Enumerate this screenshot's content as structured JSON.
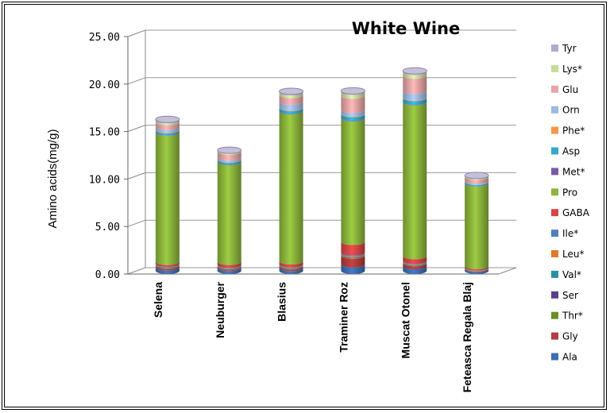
{
  "chart_data": {
    "type": "bar",
    "stacked": true,
    "three_d": true,
    "title": "White Wine",
    "ylabel": "Amino acids(mg/g)",
    "xlabel": "",
    "ylim": [
      0,
      25
    ],
    "yticks": [
      "0.00",
      "5.00",
      "10.00",
      "15.00",
      "20.00",
      "25.00"
    ],
    "grid": true,
    "legend_position": "right",
    "categories": [
      "Selena",
      "Neuburger",
      "Blasius",
      "Traminer Roz",
      "Muscat Otonel",
      "Feteasca Regala Blaj"
    ],
    "series": [
      {
        "name": "Ala",
        "color": "#3b6fb6",
        "values": [
          0.35,
          0.3,
          0.3,
          0.7,
          0.5,
          0.2
        ]
      },
      {
        "name": "Gly",
        "color": "#b43b3b",
        "values": [
          0.15,
          0.1,
          0.15,
          0.9,
          0.3,
          0.05
        ]
      },
      {
        "name": "Thr*",
        "color": "#6b8e23",
        "values": [
          0.05,
          0.05,
          0.05,
          0.05,
          0.05,
          0.02
        ]
      },
      {
        "name": "Ser",
        "color": "#5b3f8f",
        "values": [
          0.05,
          0.05,
          0.05,
          0.05,
          0.05,
          0.02
        ]
      },
      {
        "name": "Val*",
        "color": "#2a8f9f",
        "values": [
          0.05,
          0.05,
          0.05,
          0.05,
          0.05,
          0.02
        ]
      },
      {
        "name": "Leu*",
        "color": "#e07a2a",
        "values": [
          0.05,
          0.05,
          0.05,
          0.1,
          0.05,
          0.02
        ]
      },
      {
        "name": "Ile*",
        "color": "#4f81bd",
        "values": [
          0.05,
          0.05,
          0.05,
          0.1,
          0.05,
          0.02
        ]
      },
      {
        "name": "GABA",
        "color": "#d64545",
        "values": [
          0.2,
          0.3,
          0.3,
          1.1,
          0.5,
          0.15
        ]
      },
      {
        "name": "Pro",
        "color": "#8cb63c",
        "values": [
          13.6,
          10.5,
          15.8,
          13.0,
          16.2,
          8.7
        ]
      },
      {
        "name": "Met*",
        "color": "#7a5aa8",
        "values": [
          0.05,
          0.05,
          0.05,
          0.05,
          0.05,
          0.02
        ]
      },
      {
        "name": "Asp",
        "color": "#33aacc",
        "values": [
          0.2,
          0.2,
          0.3,
          0.4,
          0.4,
          0.15
        ]
      },
      {
        "name": "Phe*",
        "color": "#f79646",
        "values": [
          0.05,
          0.05,
          0.05,
          0.05,
          0.05,
          0.02
        ]
      },
      {
        "name": "Orn",
        "color": "#9fb8e0",
        "values": [
          0.3,
          0.2,
          0.6,
          0.4,
          0.7,
          0.1
        ]
      },
      {
        "name": "Glu",
        "color": "#e6a5a5",
        "values": [
          0.5,
          0.6,
          0.7,
          1.5,
          1.6,
          0.4
        ]
      },
      {
        "name": "Lys*",
        "color": "#c8dc9a",
        "values": [
          0.2,
          0.1,
          0.3,
          0.4,
          0.4,
          0.1
        ]
      },
      {
        "name": "Tyr",
        "color": "#b5a9d4",
        "values": [
          0.1,
          0.05,
          0.1,
          0.1,
          0.1,
          0.05
        ]
      }
    ]
  }
}
